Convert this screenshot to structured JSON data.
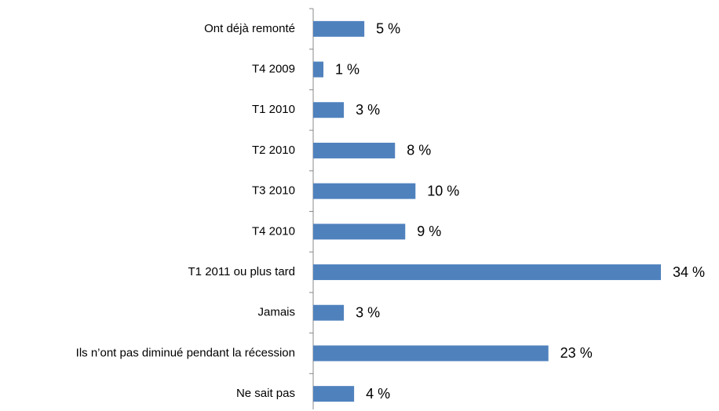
{
  "chart_data": {
    "type": "bar",
    "orientation": "horizontal",
    "categories": [
      "Ont déjà remonté",
      "T4 2009",
      "T1 2010",
      "T2 2010",
      "T3 2010",
      "T4 2010",
      "T1 2011 ou plus tard",
      "Jamais",
      "Ils n’ont pas diminué pendant la récession",
      "Ne sait pas"
    ],
    "values": [
      5,
      1,
      3,
      8,
      10,
      9,
      34,
      3,
      23,
      4
    ],
    "value_labels": [
      "5 %",
      "1 %",
      "3 %",
      "8 %",
      "10 %",
      "9 %",
      "34 %",
      "3 %",
      "23 %",
      "4 %"
    ],
    "color": "#4f81bd"
  }
}
